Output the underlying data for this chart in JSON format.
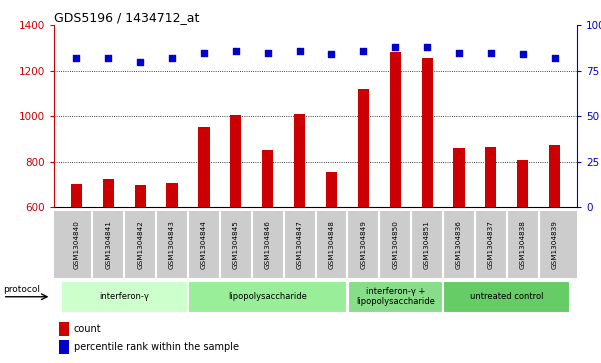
{
  "title": "GDS5196 / 1434712_at",
  "samples": [
    "GSM1304840",
    "GSM1304841",
    "GSM1304842",
    "GSM1304843",
    "GSM1304844",
    "GSM1304845",
    "GSM1304846",
    "GSM1304847",
    "GSM1304848",
    "GSM1304849",
    "GSM1304850",
    "GSM1304851",
    "GSM1304836",
    "GSM1304837",
    "GSM1304838",
    "GSM1304839"
  ],
  "counts": [
    700,
    722,
    697,
    707,
    952,
    1003,
    851,
    1010,
    752,
    1118,
    1285,
    1258,
    858,
    865,
    805,
    872
  ],
  "percentile_ranks": [
    82,
    82,
    80,
    82,
    85,
    86,
    85,
    86,
    84,
    86,
    88,
    88,
    85,
    85,
    84,
    82
  ],
  "groups": [
    {
      "label": "interferon-γ",
      "start": 0,
      "end": 4,
      "color": "#ccffcc"
    },
    {
      "label": "lipopolysaccharide",
      "start": 4,
      "end": 9,
      "color": "#99ee99"
    },
    {
      "label": "interferon-γ +\nlipopolysaccharide",
      "start": 9,
      "end": 12,
      "color": "#88dd88"
    },
    {
      "label": "untreated control",
      "start": 12,
      "end": 16,
      "color": "#66cc66"
    }
  ],
  "bar_color": "#cc0000",
  "dot_color": "#0000cc",
  "left_ylim": [
    600,
    1400
  ],
  "right_ylim": [
    0,
    100
  ],
  "left_yticks": [
    600,
    800,
    1000,
    1200,
    1400
  ],
  "right_yticks": [
    0,
    25,
    50,
    75,
    100
  ],
  "grid_values": [
    800,
    1000,
    1200
  ],
  "background_plot": "#ffffff",
  "tick_area_bg": "#cccccc",
  "legend_count_label": "count",
  "legend_pct_label": "percentile rank within the sample"
}
